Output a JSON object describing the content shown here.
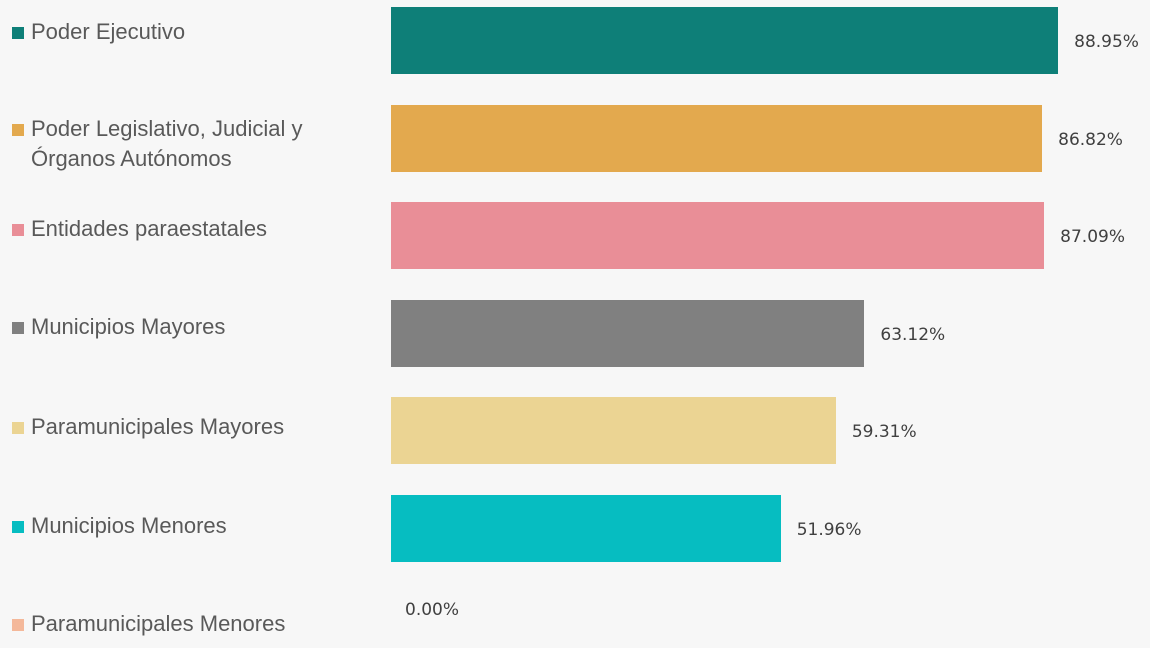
{
  "chart_data": {
    "type": "bar",
    "orientation": "horizontal",
    "categories": [
      "Poder Ejecutivo",
      "Poder Legislativo, Judicial y Órganos Autónomos",
      "Entidades paraestatales",
      "Municipios Mayores",
      "Paramunicipales Mayores",
      "Municipios Menores",
      "Paramunicipales Menores"
    ],
    "values": [
      88.95,
      86.82,
      87.09,
      63.12,
      59.31,
      51.96,
      0.0
    ],
    "value_labels": [
      "88.95%",
      "86.82%",
      "87.09%",
      "63.12%",
      "59.31%",
      "51.96%",
      "0.00%"
    ],
    "colors": [
      "#0e7f78",
      "#e3a94e",
      "#e98e97",
      "#808080",
      "#ebd493",
      "#06bdc1",
      "#f4b89a"
    ],
    "legend_position": "left",
    "grid": false,
    "xlim": [
      0,
      100
    ]
  }
}
